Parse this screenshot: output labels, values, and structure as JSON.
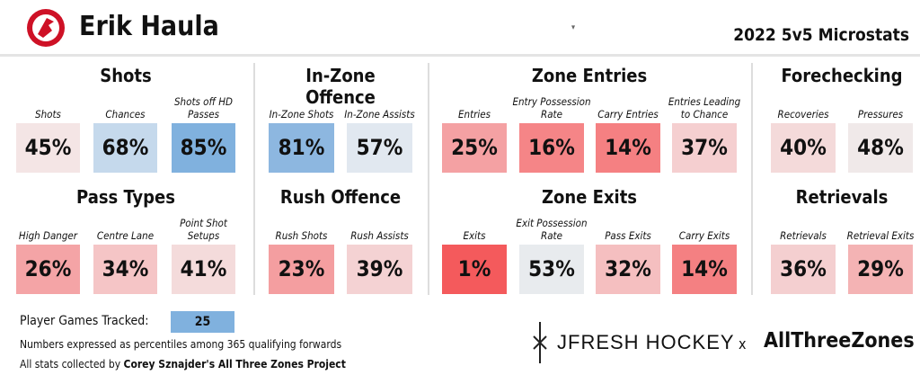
{
  "header": {
    "player": "Erik Haula",
    "subtitle": "2022 5v5 Microstats"
  },
  "sections": [
    {
      "title": "Shots",
      "stats": [
        {
          "label": "Shots",
          "value": "45%",
          "color": "#f4e5e5"
        },
        {
          "label": "Chances",
          "value": "68%",
          "color": "#c5d9ec"
        },
        {
          "label": "Shots off HD Passes",
          "value": "85%",
          "color": "#80b1de"
        }
      ]
    },
    {
      "title": "Pass Types",
      "stats": [
        {
          "label": "High Danger",
          "value": "26%",
          "color": "#f4a4a6"
        },
        {
          "label": "Centre Lane",
          "value": "34%",
          "color": "#f5c5c6"
        },
        {
          "label": "Point Shot Setups",
          "value": "41%",
          "color": "#f4dbdb"
        }
      ]
    },
    {
      "title": "In-Zone Offence",
      "stats": [
        {
          "label": "In-Zone Shots",
          "value": "81%",
          "color": "#8db7e0"
        },
        {
          "label": "In-Zone Assists",
          "value": "57%",
          "color": "#e1e8f0"
        }
      ]
    },
    {
      "title": "Rush Offence",
      "stats": [
        {
          "label": "Rush Shots",
          "value": "23%",
          "color": "#f49ea0"
        },
        {
          "label": "Rush Assists",
          "value": "39%",
          "color": "#f4d2d3"
        }
      ]
    },
    {
      "title": "Zone Entries",
      "stats": [
        {
          "label": "Entries",
          "value": "25%",
          "color": "#f4a1a3"
        },
        {
          "label": "Entry Possession Rate",
          "value": "16%",
          "color": "#f58587"
        },
        {
          "label": "Carry Entries",
          "value": "14%",
          "color": "#f58082"
        },
        {
          "label": "Entries Leading to Chance",
          "value": "37%",
          "color": "#f5cfd0"
        }
      ]
    },
    {
      "title": "Zone Exits",
      "stats": [
        {
          "label": "Exits",
          "value": "1%",
          "color": "#f45a5c"
        },
        {
          "label": "Exit Possession Rate",
          "value": "53%",
          "color": "#e8ebee"
        },
        {
          "label": "Pass Exits",
          "value": "32%",
          "color": "#f5bfc0"
        },
        {
          "label": "Carry Exits",
          "value": "14%",
          "color": "#f48082"
        }
      ]
    },
    {
      "title": "Forechecking",
      "stats": [
        {
          "label": "Recoveries",
          "value": "40%",
          "color": "#f4dada"
        },
        {
          "label": "Pressures",
          "value": "48%",
          "color": "#f0e9e9"
        }
      ]
    },
    {
      "title": "Retrievals",
      "stats": [
        {
          "label": "Retrievals",
          "value": "36%",
          "color": "#f4cfd0"
        },
        {
          "label": "Retrieval Exits",
          "value": "29%",
          "color": "#f4b3b4"
        }
      ]
    }
  ],
  "footer": {
    "games_label": "Player Games Tracked:",
    "games": "25",
    "note": "Numbers expressed as percentiles among 365 qualifying forwards",
    "credit_prefix": "All stats collected by ",
    "credit": "Corey Sznajder's All Three Zones Project",
    "brand1": "JFRESH HOCKEY",
    "brand_x": "x",
    "brand2": "AllThreeZones"
  }
}
